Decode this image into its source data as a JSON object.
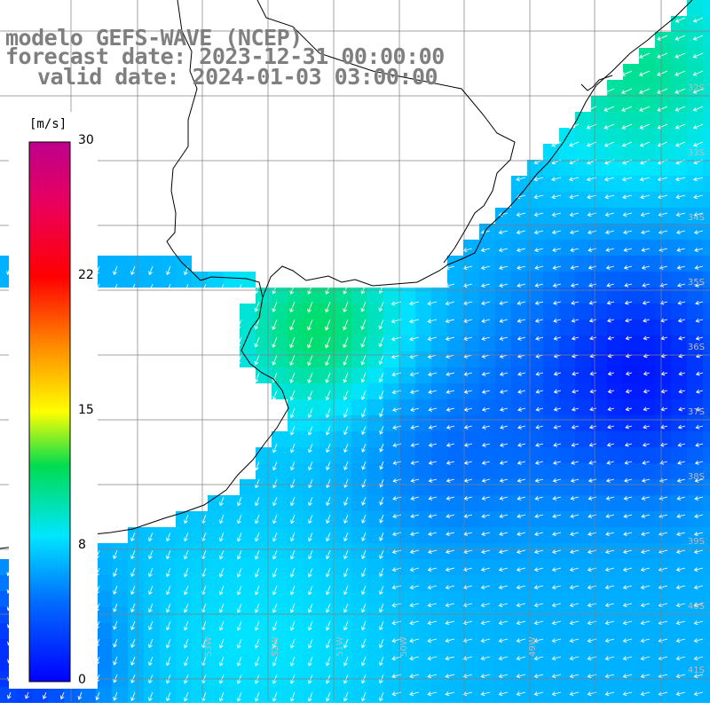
{
  "title": {
    "line1": "modelo GEFS-WAVE (NCEP)",
    "line2": "forecast date: 2023-12-31 00:00:00",
    "line3": "valid date: 2024-01-03 03:00:00"
  },
  "colorbar": {
    "unit": "[m/s]",
    "ticks": [
      "30",
      "22",
      "15",
      "8",
      "0"
    ],
    "min": 0,
    "max": 30
  },
  "lat_labels": [
    "32S",
    "33S",
    "34S",
    "35S",
    "36S",
    "37S",
    "38S",
    "39S",
    "40S",
    "41S"
  ],
  "lon_labels": [
    "53W",
    "52W",
    "51W",
    "50W",
    "49W"
  ],
  "colors": {
    "land": "#ffffff",
    "coast": "#000000",
    "grid": "#808080",
    "arrows": "#ffffff"
  },
  "field": {
    "variable": "wind speed",
    "units": "m/s"
  }
}
